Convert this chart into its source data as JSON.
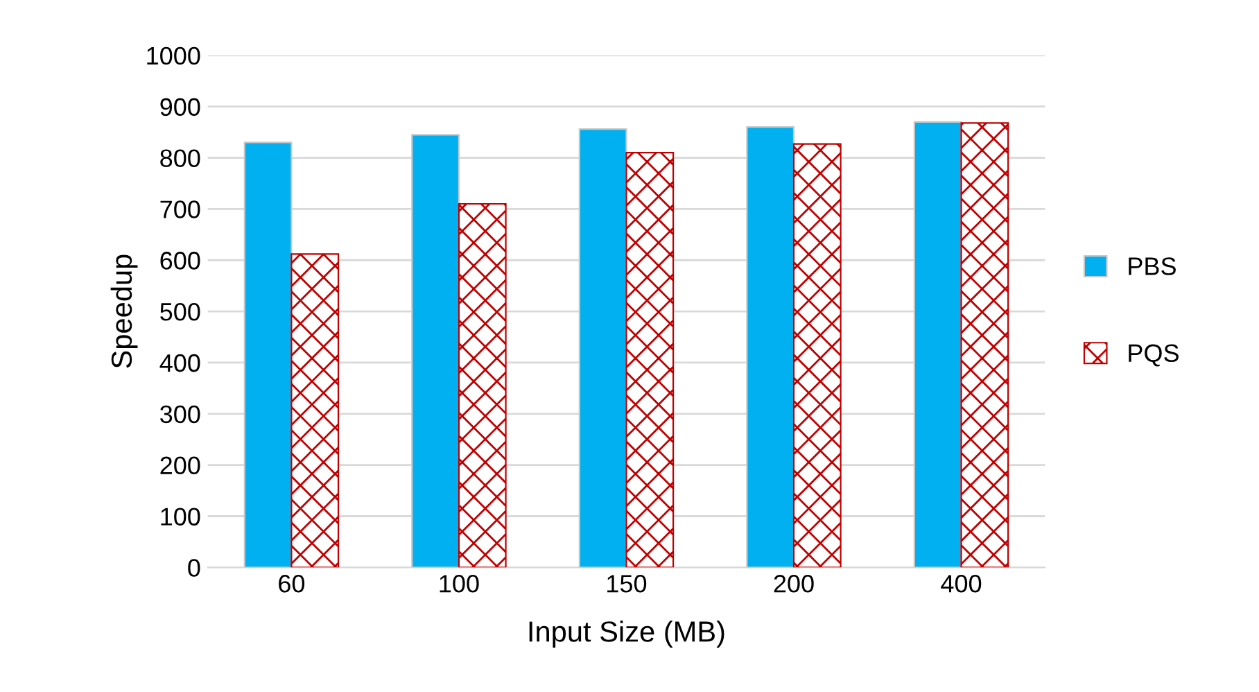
{
  "chart_data": {
    "type": "bar",
    "xlabel": "Input Size (MB)",
    "ylabel": "Speedup",
    "categories": [
      "60",
      "100",
      "150",
      "200",
      "400"
    ],
    "series": [
      {
        "name": "PBS",
        "color": "#00b0f0",
        "values": [
          830,
          845,
          856,
          860,
          870
        ]
      },
      {
        "name": "PQS",
        "color": "#c00000",
        "values": [
          612,
          710,
          810,
          827,
          868
        ]
      }
    ],
    "ylim": [
      0,
      1000
    ],
    "yticks": [
      0,
      100,
      200,
      300,
      400,
      500,
      600,
      700,
      800,
      900,
      1000
    ],
    "grid": "y",
    "legend": "right"
  }
}
